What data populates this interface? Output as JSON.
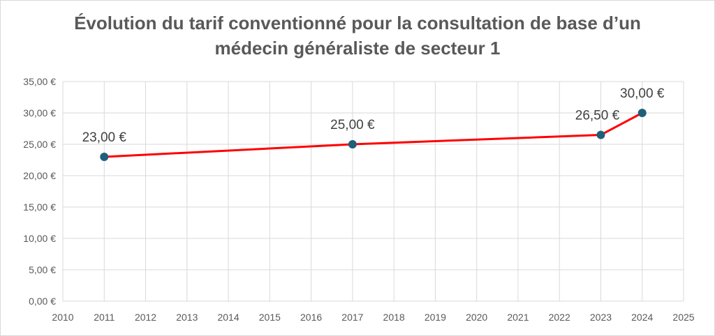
{
  "chart_data": {
    "type": "scatter",
    "title_line1": "Évolution du tarif conventionné pour la consultation de base d’un",
    "title_line2": "médecin généraliste de secteur 1",
    "xlabel": "",
    "ylabel": "",
    "x": [
      2011,
      2017,
      2023,
      2024
    ],
    "y": [
      23.0,
      25.0,
      26.5,
      30.0
    ],
    "data_labels": [
      "23,00 €",
      "25,00 €",
      "26,50 €",
      "30,00 €"
    ],
    "xlim": [
      2010,
      2025
    ],
    "ylim": [
      0,
      35
    ],
    "x_ticks": [
      "2010",
      "2011",
      "2012",
      "2013",
      "2014",
      "2015",
      "2016",
      "2017",
      "2018",
      "2019",
      "2020",
      "2021",
      "2022",
      "2023",
      "2024",
      "2025"
    ],
    "y_ticks": [
      "0,00 €",
      "5,00 €",
      "10,00 €",
      "15,00 €",
      "20,00 €",
      "25,00 €",
      "30,00 €",
      "35,00 €"
    ],
    "grid": true,
    "line_color": "#ff0000",
    "marker_color": "#1f5f7a",
    "grid_color": "#d9d9d9"
  }
}
